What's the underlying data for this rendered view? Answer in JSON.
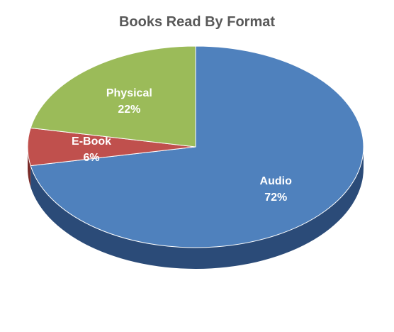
{
  "chart_data": {
    "type": "pie",
    "title": "Books Read By Format",
    "slices": [
      {
        "name": "Audio",
        "value": 72,
        "value_label": "72%",
        "color": "#4F81BD",
        "side_color": "#2B4B78"
      },
      {
        "name": "E-Book",
        "value": 6,
        "value_label": "6%",
        "color": "#C0504D",
        "side_color": "#7A2C2A"
      },
      {
        "name": "Physical",
        "value": 22,
        "value_label": "22%",
        "color": "#9BBB59",
        "side_color": "#5E7A2C"
      }
    ],
    "start_angle_deg": 0,
    "direction": "clockwise",
    "three_d": true,
    "legend": "none"
  }
}
